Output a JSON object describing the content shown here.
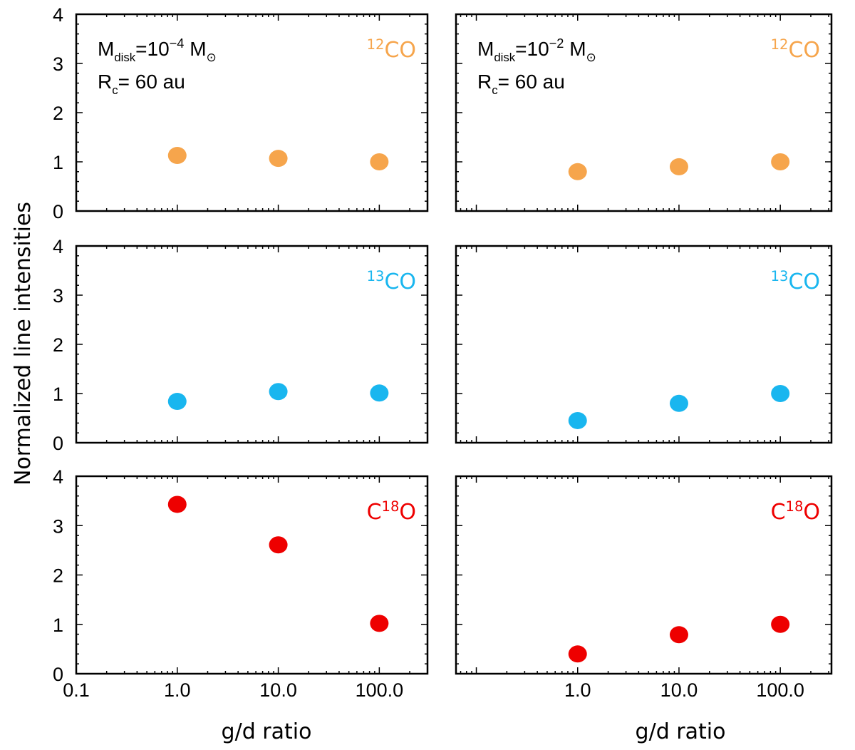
{
  "figure": {
    "ylabel": "Normalized line intensities",
    "xlabel": "g/d ratio",
    "colors": {
      "12CO": "#F6A54C",
      "13CO": "#19B6EF",
      "C18O": "#EE0000"
    }
  },
  "chart_data": [
    {
      "type": "scatter",
      "panel": "top-left",
      "species": "12CO",
      "label_parts": [
        {
          "t": "12",
          "sup": true
        },
        {
          "t": "CO"
        }
      ],
      "color": "#F6A54C",
      "annotation": [
        [
          {
            "t": "M"
          },
          {
            "t": "disk",
            "sub": true
          },
          {
            "t": "=10"
          },
          {
            "t": "−4",
            "sup": true
          },
          {
            "t": " M"
          },
          {
            "t": "⊙",
            "sub": true
          }
        ],
        [
          {
            "t": "R"
          },
          {
            "t": "c",
            "sub": true
          },
          {
            "t": "=  60 au"
          }
        ]
      ],
      "x": [
        1,
        10,
        100
      ],
      "y": [
        1.13,
        1.07,
        1.0
      ],
      "xlim": [
        0.1,
        300
      ],
      "ylim": [
        0,
        4
      ],
      "xscale": "log",
      "yticks": [
        "0",
        "1",
        "2",
        "3",
        "4"
      ],
      "xticks": []
    },
    {
      "type": "scatter",
      "panel": "top-right",
      "species": "12CO",
      "label_parts": [
        {
          "t": "12",
          "sup": true
        },
        {
          "t": "CO"
        }
      ],
      "color": "#F6A54C",
      "annotation": [
        [
          {
            "t": "M"
          },
          {
            "t": "disk",
            "sub": true
          },
          {
            "t": "=10"
          },
          {
            "t": "−2",
            "sup": true
          },
          {
            "t": " M"
          },
          {
            "t": "⊙",
            "sub": true
          }
        ],
        [
          {
            "t": "R"
          },
          {
            "t": "c",
            "sub": true
          },
          {
            "t": "=  60 au"
          }
        ]
      ],
      "x": [
        1,
        10,
        100
      ],
      "y": [
        0.8,
        0.9,
        1.0
      ],
      "xlim": [
        0.063,
        320
      ],
      "ylim": [
        0,
        4
      ],
      "xscale": "log",
      "yticks": [],
      "xticks": []
    },
    {
      "type": "scatter",
      "panel": "middle-left",
      "species": "13CO",
      "label_parts": [
        {
          "t": "13",
          "sup": true
        },
        {
          "t": "CO"
        }
      ],
      "color": "#19B6EF",
      "x": [
        1,
        10,
        100
      ],
      "y": [
        0.84,
        1.04,
        1.01
      ],
      "xlim": [
        0.1,
        300
      ],
      "ylim": [
        0,
        4
      ],
      "xscale": "log",
      "yticks": [
        "0",
        "1",
        "2",
        "3",
        "4"
      ],
      "xticks": []
    },
    {
      "type": "scatter",
      "panel": "middle-right",
      "species": "13CO",
      "label_parts": [
        {
          "t": "13",
          "sup": true
        },
        {
          "t": "CO"
        }
      ],
      "color": "#19B6EF",
      "x": [
        1,
        10,
        100
      ],
      "y": [
        0.45,
        0.8,
        1.0
      ],
      "xlim": [
        0.063,
        320
      ],
      "ylim": [
        0,
        4
      ],
      "xscale": "log",
      "yticks": [],
      "xticks": []
    },
    {
      "type": "scatter",
      "panel": "bottom-left",
      "species": "C18O",
      "label_parts": [
        {
          "t": "C"
        },
        {
          "t": "18",
          "sup": true
        },
        {
          "t": "O"
        }
      ],
      "color": "#EE0000",
      "x": [
        1,
        10,
        100
      ],
      "y": [
        3.43,
        2.61,
        1.02
      ],
      "xlim": [
        0.1,
        300
      ],
      "ylim": [
        0,
        4
      ],
      "xscale": "log",
      "yticks": [
        "0",
        "1",
        "2",
        "3",
        "4"
      ],
      "xticks": [
        {
          "v": 0.1,
          "label": "0.1"
        },
        {
          "v": 1,
          "label": "1.0"
        },
        {
          "v": 10,
          "label": "10.0"
        },
        {
          "v": 100,
          "label": "100.0"
        }
      ]
    },
    {
      "type": "scatter",
      "panel": "bottom-right",
      "species": "C18O",
      "label_parts": [
        {
          "t": "C"
        },
        {
          "t": "18",
          "sup": true
        },
        {
          "t": "O"
        }
      ],
      "color": "#EE0000",
      "x": [
        1,
        10,
        100
      ],
      "y": [
        0.4,
        0.79,
        1.0
      ],
      "xlim": [
        0.063,
        320
      ],
      "ylim": [
        0,
        4
      ],
      "xscale": "log",
      "yticks": [],
      "xticks": [
        {
          "v": 1,
          "label": "1.0"
        },
        {
          "v": 10,
          "label": "10.0"
        },
        {
          "v": 100,
          "label": "100.0"
        }
      ]
    }
  ]
}
